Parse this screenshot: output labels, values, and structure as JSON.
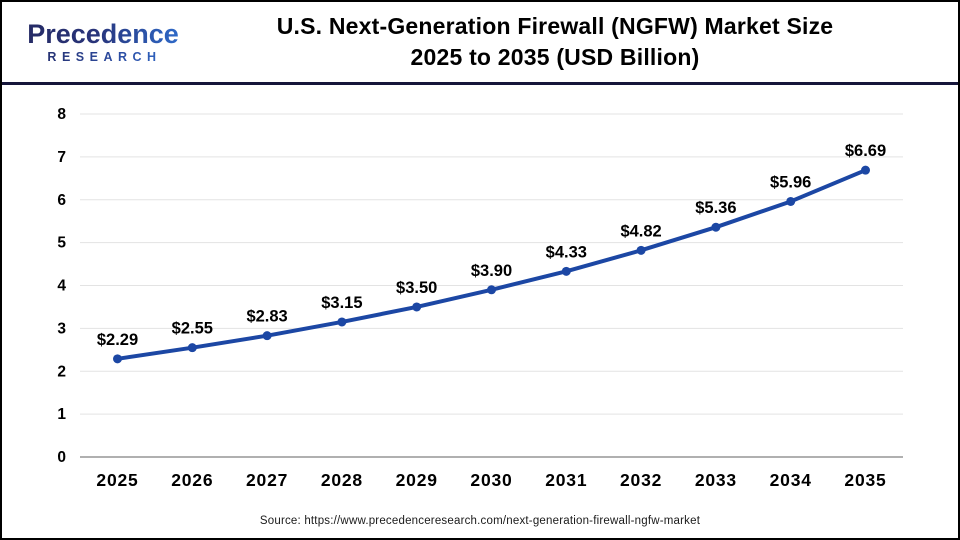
{
  "header": {
    "logo": {
      "name": "Precedence",
      "research": "RESEARCH"
    },
    "title_line1": "U.S. Next-Generation Firewall (NGFW) Market Size",
    "title_line2": "2025 to 2035 (USD Billion)"
  },
  "chart_data": {
    "type": "line",
    "title": "U.S. Next-Generation Firewall (NGFW) Market Size 2025 to 2035 (USD Billion)",
    "categories": [
      "2025",
      "2026",
      "2027",
      "2028",
      "2029",
      "2030",
      "2031",
      "2032",
      "2033",
      "2034",
      "2035"
    ],
    "values": [
      2.29,
      2.55,
      2.83,
      3.15,
      3.5,
      3.9,
      4.33,
      4.82,
      5.36,
      5.96,
      6.69
    ],
    "point_labels": [
      "$2.29",
      "$2.55",
      "$2.83",
      "$3.15",
      "$3.50",
      "$3.90",
      "$4.33",
      "$4.82",
      "$5.36",
      "$5.96",
      "$6.69"
    ],
    "xlabel": "",
    "ylabel": "",
    "ylim": [
      0,
      8
    ],
    "ytick_step": 1,
    "ytick_labels": [
      "0",
      "1",
      "2",
      "3",
      "4",
      "5",
      "6",
      "7",
      "8"
    ],
    "grid": true,
    "legend": "none",
    "unit": "USD Billion"
  },
  "footer": {
    "source": "Source: https://www.precedenceresearch.com/next-generation-firewall-ngfw-market"
  },
  "colors": {
    "line": "#1c47a4",
    "marker": "#1c47a4",
    "gridline": "#e3e3e3",
    "zero_axis": "#b0b0b0",
    "navy_divider": "#15153a",
    "title_text": "#000000",
    "label_text": "#000000",
    "source_text": "#1a1a1a",
    "logo_navy": "#252a63",
    "logo_blue": "#2f6fd0"
  }
}
